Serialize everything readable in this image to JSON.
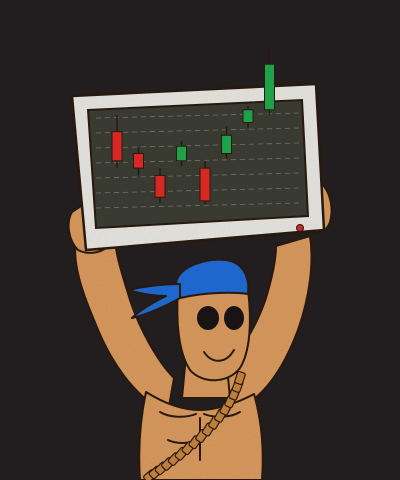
{
  "colors": {
    "background": "#231f20",
    "monitor_frame": "#e8e6e1",
    "screen": "#3b3d33",
    "grid": "#8f8f7f",
    "candle_up": "#1fa84b",
    "candle_down": "#e02a26",
    "power_led": "#d8282e",
    "skin": "#d99a5e",
    "outline": "#2a1a10",
    "bandana": "#1f6bd6",
    "eyes": "#1a1414",
    "ammo_belt": "#c6843e"
  },
  "candles": [
    {
      "direction": "down",
      "open": 73,
      "close": 57,
      "high": 82,
      "low": 53
    },
    {
      "direction": "down",
      "open": 61,
      "close": 53,
      "high": 64,
      "low": 49
    },
    {
      "direction": "down",
      "open": 49,
      "close": 37,
      "high": 53,
      "low": 34
    },
    {
      "direction": "up",
      "open": 57,
      "close": 65,
      "high": 68,
      "low": 54
    },
    {
      "direction": "down",
      "open": 53,
      "close": 35,
      "high": 57,
      "low": 33
    },
    {
      "direction": "up",
      "open": 61,
      "close": 71,
      "high": 76,
      "low": 58
    },
    {
      "direction": "up",
      "open": 78,
      "close": 85,
      "high": 87,
      "low": 75
    },
    {
      "direction": "up",
      "open": 85,
      "close": 110,
      "high": 120,
      "low": 82
    }
  ],
  "icons": {
    "figure": "muscular-man-icon",
    "headband": "bandana-icon",
    "belt": "ammo-belt-icon",
    "device": "monitor-icon"
  }
}
